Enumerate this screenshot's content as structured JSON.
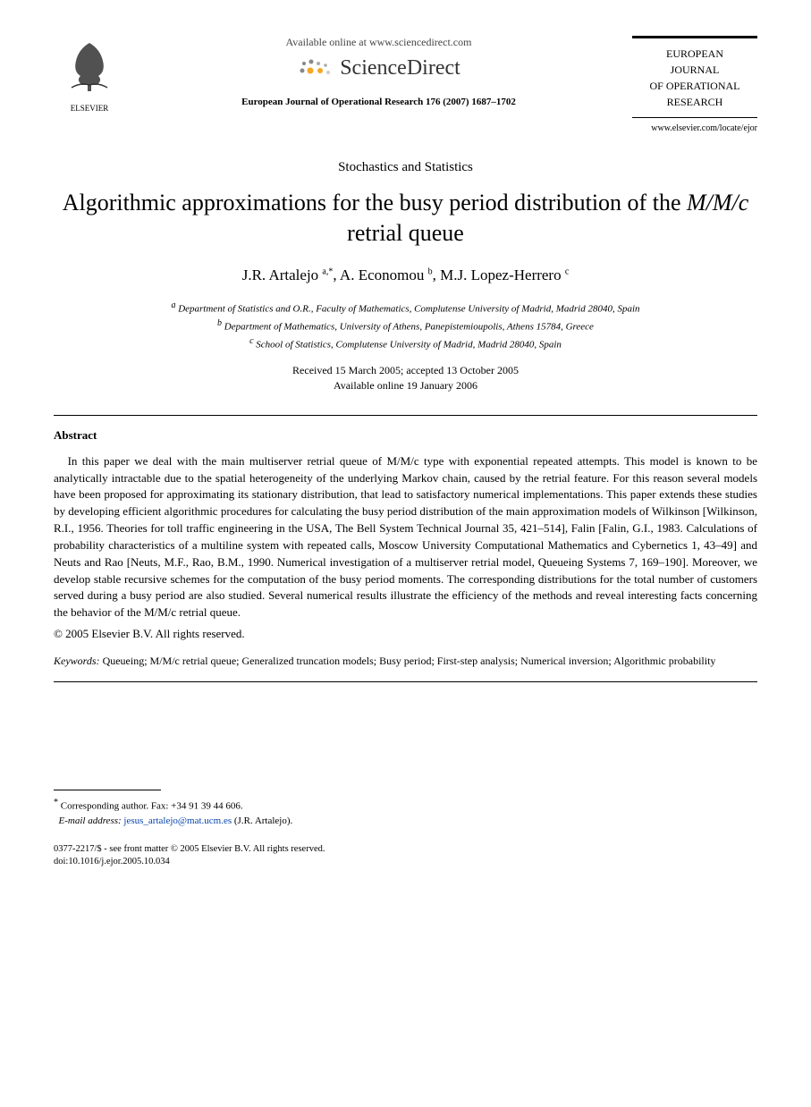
{
  "header": {
    "elsevier_label": "ELSEVIER",
    "available_online": "Available online at www.sciencedirect.com",
    "sd_brand": "ScienceDirect",
    "citation": "European Journal of Operational Research 176 (2007) 1687–1702",
    "journal_box_l1": "EUROPEAN",
    "journal_box_l2": "JOURNAL",
    "journal_box_l3": "OF OPERATIONAL",
    "journal_box_l4": "RESEARCH",
    "journal_url": "www.elsevier.com/locate/ejor"
  },
  "paper": {
    "section": "Stochastics and Statistics",
    "title_pre": "Algorithmic approximations for the busy period distribution of the ",
    "title_model": "M/M/c",
    "title_post": " retrial queue",
    "authors_html": "J.R. Artalejo <span class='sup'>a,*</span>, A. Economou <span class='sup'>b</span>, M.J. Lopez-Herrero <span class='sup'>c</span>",
    "aff_a": "Department of Statistics and O.R., Faculty of Mathematics, Complutense University of Madrid, Madrid 28040, Spain",
    "aff_b": "Department of Mathematics, University of Athens, Panepistemioupolis, Athens 15784, Greece",
    "aff_c": "School of Statistics, Complutense University of Madrid, Madrid 28040, Spain",
    "dates_l1": "Received 15 March 2005; accepted 13 October 2005",
    "dates_l2": "Available online 19 January 2006"
  },
  "abstract": {
    "heading": "Abstract",
    "body": "In this paper we deal with the main multiserver retrial queue of M/M/c type with exponential repeated attempts. This model is known to be analytically intractable due to the spatial heterogeneity of the underlying Markov chain, caused by the retrial feature. For this reason several models have been proposed for approximating its stationary distribution, that lead to satisfactory numerical implementations. This paper extends these studies by developing efficient algorithmic procedures for calculating the busy period distribution of the main approximation models of Wilkinson [Wilkinson, R.I., 1956. Theories for toll traffic engineering in the USA, The Bell System Technical Journal 35, 421–514], Falin [Falin, G.I., 1983. Calculations of probability characteristics of a multiline system with repeated calls, Moscow University Computational Mathematics and Cybernetics 1, 43–49] and Neuts and Rao [Neuts, M.F., Rao, B.M., 1990. Numerical investigation of a multiserver retrial model, Queueing Systems 7, 169–190]. Moreover, we develop stable recursive schemes for the computation of the busy period moments. The corresponding distributions for the total number of customers served during a busy period are also studied. Several numerical results illustrate the efficiency of the methods and reveal interesting facts concerning the behavior of the M/M/c retrial queue.",
    "copyright": "© 2005 Elsevier B.V. All rights reserved.",
    "keywords_label": "Keywords:",
    "keywords_text": " Queueing; M/M/c retrial queue; Generalized truncation models; Busy period; First-step analysis; Numerical inversion; Algorithmic probability"
  },
  "footnotes": {
    "corr_label": "Corresponding author. Fax: +34 91 39 44 606.",
    "email_label": "E-mail address:",
    "email": "jesus_artalejo@mat.ucm.es",
    "email_paren": "(J.R. Artalejo).",
    "front_matter": "0377-2217/$ - see front matter © 2005 Elsevier B.V. All rights reserved.",
    "doi": "doi:10.1016/j.ejor.2005.10.034"
  },
  "colors": {
    "text": "#000000",
    "link": "#0645ad",
    "sd_orange": "#f5a623",
    "sd_gray": "#888888"
  }
}
